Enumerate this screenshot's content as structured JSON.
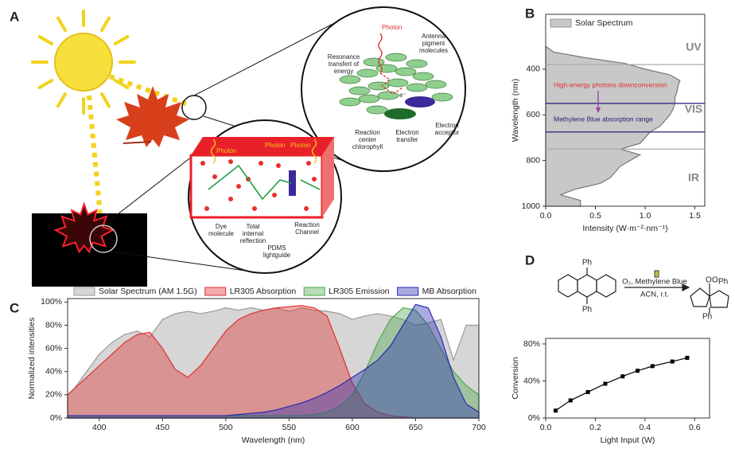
{
  "diagram": {
    "panel": "A",
    "photon_labels": [
      "Photon",
      "Photon",
      "Photon",
      "Photon"
    ],
    "antenna": [
      "Antenna",
      "pigment",
      "molecules"
    ],
    "resonance": [
      "Resonance",
      "transfert of",
      "energy"
    ],
    "electron": "e⁻",
    "reaction_center": [
      "Reaction",
      "center",
      "chlorophyll"
    ],
    "electron_transfer": [
      "Electron",
      "transfer"
    ],
    "electron_acceptor": [
      "Electron",
      "acceptor"
    ],
    "dye": [
      "Dye",
      "molecule"
    ],
    "tir": [
      "Total",
      "internal",
      "reflection"
    ],
    "pdms": [
      "PDMS",
      "lightguide"
    ],
    "channel": [
      "Reaction",
      "Channel"
    ]
  },
  "chart_data": [
    {
      "panel": "B",
      "type": "area",
      "orientation": "horizontal",
      "x": [
        300,
        325,
        350,
        375,
        400,
        425,
        450,
        475,
        500,
        525,
        550,
        575,
        600,
        625,
        650,
        675,
        700,
        725,
        750,
        775,
        800,
        825,
        850,
        875,
        900,
        925,
        950,
        975,
        1000
      ],
      "series": [
        {
          "name": "Solar Spectrum",
          "color": "#c8c8c8",
          "values": [
            0.0,
            0.08,
            0.4,
            0.8,
            1.0,
            1.25,
            1.35,
            1.33,
            1.32,
            1.3,
            1.3,
            1.28,
            1.25,
            1.2,
            1.15,
            1.05,
            1.0,
            0.95,
            0.75,
            0.95,
            0.85,
            0.75,
            0.7,
            0.65,
            0.55,
            0.3,
            0.15,
            0.35,
            0.35
          ]
        }
      ],
      "xlabel": "Intensity (W·m⁻²·nm⁻¹)",
      "ylabel": "Wavelength (nm)",
      "xlim": [
        0,
        1.6
      ],
      "xticks": [
        {
          "value": 0,
          "label": "0.0"
        },
        0.5,
        {
          "value": 1,
          "label": "1.0"
        },
        1.5
      ],
      "ylim": [
        160,
        1000
      ],
      "yticks": [
        400,
        600,
        800,
        1000
      ],
      "y_inverted": true,
      "legend": "top-left",
      "reference_lines": [
        {
          "value": 380,
          "color": "#aaaaaa"
        },
        {
          "value": 550,
          "color": "#1f1f7a"
        },
        {
          "value": 675,
          "color": "#1f1f7a"
        },
        {
          "value": 750,
          "color": "#aaaaaa"
        }
      ],
      "region_labels": [
        "UV",
        "VIS",
        "IR"
      ],
      "notes": [
        {
          "text": "High-energy photons downconversion",
          "color": "#e0302a"
        },
        {
          "text": "Methylene Blue absorption range",
          "color": "#1f1f7a"
        }
      ]
    },
    {
      "panel": "C",
      "type": "area",
      "x": [
        375,
        380,
        390,
        400,
        410,
        420,
        430,
        440,
        450,
        460,
        470,
        480,
        490,
        500,
        510,
        520,
        530,
        540,
        550,
        560,
        570,
        580,
        590,
        600,
        610,
        620,
        630,
        640,
        650,
        660,
        670,
        680,
        690,
        700
      ],
      "series": [
        {
          "name": "Solar Spectrum (AM 1.5G)",
          "color": "#999999",
          "values": [
            20,
            25,
            40,
            55,
            65,
            72,
            75,
            70,
            85,
            90,
            92,
            90,
            92,
            95,
            93,
            95,
            93,
            95,
            92,
            95,
            93,
            92,
            90,
            85,
            88,
            90,
            88,
            85,
            80,
            82,
            85,
            50,
            80,
            80
          ]
        },
        {
          "name": "LR305 Absorption",
          "color": "#e03030",
          "values": [
            20,
            25,
            35,
            45,
            55,
            65,
            72,
            74,
            60,
            42,
            35,
            45,
            60,
            75,
            85,
            90,
            93,
            95,
            96,
            97,
            95,
            88,
            60,
            30,
            12,
            5,
            2,
            1,
            0,
            0,
            0,
            0,
            0,
            0
          ]
        },
        {
          "name": "LR305 Emission",
          "color": "#4aa84a",
          "values": [
            2,
            2,
            2,
            2,
            2,
            2,
            2,
            2,
            2,
            2,
            2,
            2,
            2,
            2,
            2,
            2,
            2,
            2,
            2,
            2,
            3,
            5,
            10,
            20,
            40,
            65,
            85,
            95,
            93,
            80,
            60,
            40,
            28,
            20
          ]
        },
        {
          "name": "MB Absorption",
          "color": "#2a2ab0",
          "values": [
            2,
            2,
            2,
            2,
            2,
            2,
            2,
            2,
            2,
            2,
            2,
            2,
            2,
            2,
            3,
            4,
            5,
            7,
            10,
            13,
            17,
            22,
            28,
            35,
            42,
            50,
            62,
            80,
            98,
            95,
            70,
            35,
            12,
            5
          ]
        }
      ],
      "xlabel": "Wavelength (nm)",
      "ylabel": "Normalized intensities",
      "xlim": [
        375,
        700
      ],
      "xticks": [
        400,
        450,
        500,
        550,
        600,
        650,
        700
      ],
      "ylim": [
        0,
        103
      ],
      "yticks": [
        {
          "value": 0,
          "label": "0%"
        },
        {
          "value": 20,
          "label": "20%"
        },
        {
          "value": 40,
          "label": "40%"
        },
        {
          "value": 60,
          "label": "60%"
        },
        {
          "value": 80,
          "label": "80%"
        },
        {
          "value": 100,
          "label": "100%"
        }
      ],
      "legend": "top"
    },
    {
      "panel": "D",
      "type": "line",
      "x": [
        0.04,
        0.1,
        0.17,
        0.24,
        0.31,
        0.37,
        0.43,
        0.51,
        0.57
      ],
      "values": [
        8,
        19,
        28,
        37,
        45,
        51,
        56,
        61,
        65
      ],
      "color": "#000000",
      "xlabel": "Light Input (W)",
      "ylabel": "Conversion",
      "xlim": [
        0,
        0.66
      ],
      "xticks": [
        {
          "value": 0,
          "label": "0.0"
        },
        0.2,
        0.4,
        0.6
      ],
      "ylim": [
        0,
        86
      ],
      "yticks": [
        {
          "value": 0,
          "label": "0%"
        },
        {
          "value": 40,
          "label": "40%"
        },
        {
          "value": 80,
          "label": "80%"
        }
      ],
      "scheme": {
        "reactant_ph": [
          "Ph",
          "Ph"
        ],
        "reagents": "O₂, Methylene Blue",
        "conditions": "ACN, r.t.",
        "product_o": [
          "O",
          "O"
        ],
        "product_ph": [
          "Ph",
          "Ph"
        ]
      }
    }
  ]
}
